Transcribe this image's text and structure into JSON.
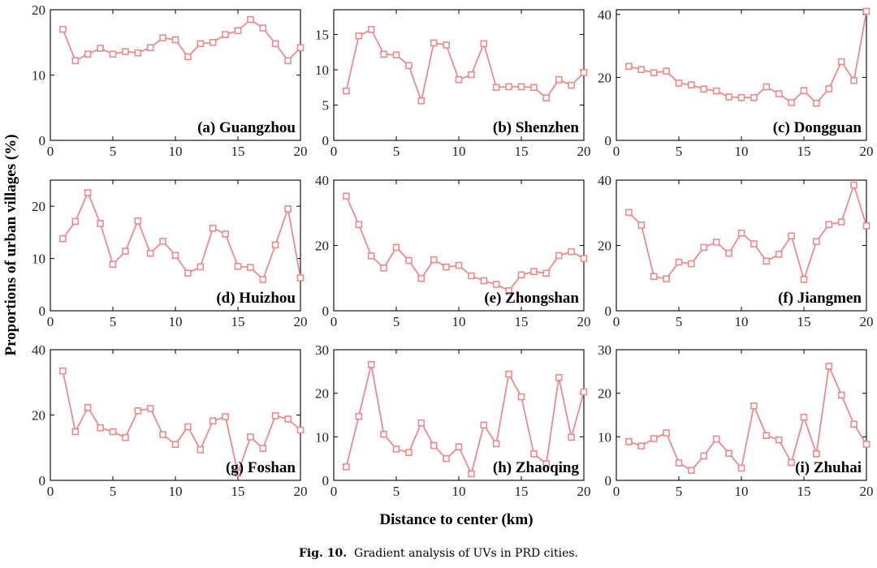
{
  "figure": {
    "ylabel": "Proportions of urban villages (%)",
    "xlabel": "Distance to center (km)",
    "caption_number": "Fig. 10.",
    "caption_text": "Gradient analysis of UVs in PRD cities.",
    "line_color": "#f08a8a"
  },
  "chart_data": [
    {
      "type": "line",
      "title": "(a) Guangzhou",
      "x": [
        1,
        2,
        3,
        4,
        5,
        6,
        7,
        8,
        9,
        10,
        11,
        12,
        13,
        14,
        15,
        16,
        17,
        18,
        19,
        20
      ],
      "series": [
        {
          "values": [
            17.0,
            12.2,
            13.2,
            14.1,
            13.2,
            13.6,
            13.4,
            14.2,
            15.7,
            15.4,
            12.8,
            14.8,
            15.0,
            16.2,
            16.8,
            18.5,
            17.2,
            14.8,
            12.2,
            14.2
          ]
        }
      ],
      "xlim": [
        0,
        20
      ],
      "ylim": [
        0,
        20
      ],
      "xticks": [
        0,
        5,
        10,
        15,
        20
      ],
      "yticks": [
        0,
        10,
        20
      ],
      "grid": false
    },
    {
      "type": "line",
      "title": "(b) Shenzhen",
      "x": [
        1,
        2,
        3,
        4,
        5,
        6,
        7,
        8,
        9,
        10,
        11,
        12,
        13,
        14,
        15,
        16,
        17,
        18,
        19,
        20
      ],
      "series": [
        {
          "values": [
            7.0,
            14.8,
            15.7,
            12.2,
            12.1,
            10.6,
            5.6,
            13.8,
            13.5,
            8.6,
            9.3,
            13.7,
            7.5,
            7.6,
            7.6,
            7.5,
            6.0,
            8.6,
            7.8,
            9.6
          ]
        }
      ],
      "xlim": [
        0,
        20
      ],
      "ylim": [
        0,
        18.5
      ],
      "xticks": [
        0,
        5,
        10,
        15,
        20
      ],
      "yticks": [
        0,
        5,
        10,
        15
      ],
      "grid": false
    },
    {
      "type": "line",
      "title": "(c) Dongguan",
      "x": [
        1,
        2,
        3,
        4,
        5,
        6,
        7,
        8,
        9,
        10,
        11,
        12,
        13,
        14,
        15,
        16,
        17,
        18,
        19,
        20
      ],
      "series": [
        {
          "values": [
            23.5,
            22.5,
            21.5,
            22.0,
            18.2,
            17.6,
            16.3,
            15.7,
            13.8,
            13.6,
            13.6,
            17.0,
            14.8,
            12.0,
            15.8,
            11.8,
            16.4,
            25.0,
            19.0,
            41.0
          ]
        }
      ],
      "xlim": [
        0,
        20
      ],
      "ylim": [
        0,
        41.5
      ],
      "xticks": [
        0,
        5,
        10,
        15,
        20
      ],
      "yticks": [
        0,
        20,
        40
      ],
      "grid": false
    },
    {
      "type": "line",
      "title": "(d) Huizhou",
      "x": [
        1,
        2,
        3,
        4,
        5,
        6,
        7,
        8,
        9,
        10,
        11,
        12,
        13,
        14,
        15,
        16,
        17,
        18,
        19,
        20
      ],
      "series": [
        {
          "values": [
            13.8,
            17.1,
            22.6,
            16.7,
            8.9,
            11.4,
            17.2,
            11.0,
            13.3,
            10.6,
            7.2,
            8.4,
            15.8,
            14.7,
            8.5,
            8.3,
            6.0,
            12.6,
            19.5,
            6.3
          ]
        }
      ],
      "xlim": [
        0,
        20
      ],
      "ylim": [
        0,
        25
      ],
      "xticks": [
        0,
        5,
        10,
        15,
        20
      ],
      "yticks": [
        0,
        10,
        20
      ],
      "grid": false
    },
    {
      "type": "line",
      "title": "(e) Zhongshan",
      "x": [
        1,
        2,
        3,
        4,
        5,
        6,
        7,
        8,
        9,
        10,
        11,
        12,
        13,
        14,
        15,
        16,
        17,
        18,
        19,
        20
      ],
      "series": [
        {
          "values": [
            35.1,
            26.4,
            16.8,
            13.1,
            19.4,
            15.4,
            9.9,
            15.6,
            13.4,
            13.9,
            10.7,
            9.2,
            8.1,
            6.1,
            11.0,
            12.0,
            11.5,
            16.9,
            18.1,
            16.0
          ]
        }
      ],
      "xlim": [
        0,
        20
      ],
      "ylim": [
        0,
        40
      ],
      "xticks": [
        0,
        5,
        10,
        15,
        20
      ],
      "yticks": [
        0,
        20,
        40
      ],
      "grid": false
    },
    {
      "type": "line",
      "title": "(f) Jiangmen",
      "x": [
        1,
        2,
        3,
        4,
        5,
        6,
        7,
        8,
        9,
        10,
        11,
        12,
        13,
        14,
        15,
        16,
        17,
        18,
        19,
        20
      ],
      "series": [
        {
          "values": [
            30.1,
            26.2,
            10.5,
            9.8,
            14.9,
            14.4,
            19.4,
            21.0,
            17.6,
            23.8,
            20.5,
            15.2,
            17.3,
            22.9,
            9.6,
            21.2,
            26.4,
            27.2,
            38.5,
            26.0
          ]
        }
      ],
      "xlim": [
        0,
        20
      ],
      "ylim": [
        0,
        40
      ],
      "xticks": [
        0,
        5,
        10,
        15,
        20
      ],
      "yticks": [
        0,
        20,
        40
      ],
      "grid": false
    },
    {
      "type": "line",
      "title": "(g) Foshan",
      "x": [
        1,
        2,
        3,
        4,
        5,
        6,
        7,
        8,
        9,
        10,
        11,
        12,
        13,
        14,
        15,
        16,
        17,
        18,
        19,
        20
      ],
      "series": [
        {
          "values": [
            33.5,
            14.9,
            22.3,
            16.1,
            14.9,
            13.1,
            21.3,
            22.0,
            14.0,
            11.0,
            16.4,
            9.4,
            18.2,
            19.5,
            2.2,
            13.3,
            9.8,
            19.8,
            18.8,
            15.4
          ]
        }
      ],
      "xlim": [
        0,
        20
      ],
      "ylim": [
        0,
        40
      ],
      "xticks": [
        0,
        5,
        10,
        15,
        20
      ],
      "yticks": [
        0,
        20,
        40
      ],
      "grid": false
    },
    {
      "type": "line",
      "title": "(h) Zhaoqing",
      "x": [
        1,
        2,
        3,
        4,
        5,
        6,
        7,
        8,
        9,
        10,
        11,
        12,
        13,
        14,
        15,
        16,
        17,
        18,
        19,
        20
      ],
      "series": [
        {
          "values": [
            3.1,
            14.7,
            26.6,
            10.6,
            7.2,
            6.4,
            13.2,
            8.0,
            5.0,
            7.7,
            1.5,
            12.7,
            8.4,
            24.4,
            19.2,
            6.1,
            3.8,
            23.6,
            9.9,
            20.3
          ]
        }
      ],
      "xlim": [
        0,
        20
      ],
      "ylim": [
        0,
        30
      ],
      "xticks": [
        0,
        5,
        10,
        15,
        20
      ],
      "yticks": [
        0,
        10,
        20,
        30
      ],
      "grid": false
    },
    {
      "type": "line",
      "title": "(i) Zhuhai",
      "x": [
        1,
        2,
        3,
        4,
        5,
        6,
        7,
        8,
        9,
        10,
        11,
        12,
        13,
        14,
        15,
        16,
        17,
        18,
        19,
        20
      ],
      "series": [
        {
          "values": [
            8.9,
            7.9,
            9.6,
            10.9,
            4.0,
            2.3,
            5.6,
            9.5,
            6.2,
            2.8,
            17.1,
            10.3,
            9.3,
            4.1,
            14.5,
            6.1,
            26.2,
            19.6,
            12.9,
            8.3
          ]
        }
      ],
      "xlim": [
        0,
        20
      ],
      "ylim": [
        0,
        30
      ],
      "xticks": [
        0,
        5,
        10,
        15,
        20
      ],
      "yticks": [
        0,
        10,
        20,
        30
      ],
      "grid": false
    }
  ]
}
